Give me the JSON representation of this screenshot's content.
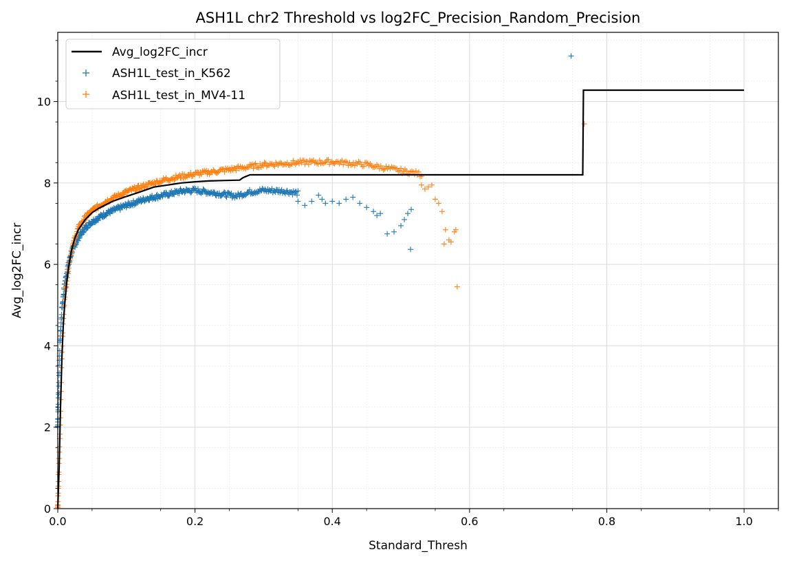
{
  "chart_data": {
    "type": "scatter",
    "title": "ASH1L chr2 Threshold vs log2FC_Precision_Random_Precision",
    "xlabel": "Standard_Thresh",
    "ylabel": "Avg_log2FC_incr",
    "xlim": [
      0.0,
      1.05
    ],
    "ylim": [
      0,
      11.7
    ],
    "xticks": [
      "0.0",
      "0.2",
      "0.4",
      "0.6",
      "0.8",
      "1.0"
    ],
    "yticks": [
      "0",
      "2",
      "4",
      "6",
      "8",
      "10"
    ],
    "grid": true,
    "minor_grid": true,
    "legend_position": "top-left",
    "line_series": {
      "name": "Avg_log2FC_incr",
      "color": "#000000",
      "points": [
        [
          0.0,
          0.0
        ],
        [
          0.002,
          1.0
        ],
        [
          0.004,
          2.5
        ],
        [
          0.006,
          3.7
        ],
        [
          0.008,
          4.5
        ],
        [
          0.01,
          5.0
        ],
        [
          0.013,
          5.55
        ],
        [
          0.016,
          5.95
        ],
        [
          0.02,
          6.35
        ],
        [
          0.025,
          6.65
        ],
        [
          0.03,
          6.85
        ],
        [
          0.04,
          7.1
        ],
        [
          0.05,
          7.27
        ],
        [
          0.06,
          7.38
        ],
        [
          0.08,
          7.55
        ],
        [
          0.1,
          7.67
        ],
        [
          0.12,
          7.78
        ],
        [
          0.14,
          7.9
        ],
        [
          0.16,
          7.95
        ],
        [
          0.18,
          8.0
        ],
        [
          0.2,
          8.03
        ],
        [
          0.22,
          8.05
        ],
        [
          0.24,
          8.06
        ],
        [
          0.265,
          8.07
        ],
        [
          0.27,
          8.13
        ],
        [
          0.28,
          8.2
        ],
        [
          0.5,
          8.2
        ],
        [
          0.65,
          8.2
        ],
        [
          0.765,
          8.2
        ],
        [
          0.766,
          10.28
        ],
        [
          1.0,
          10.28
        ]
      ]
    },
    "scatter_series": [
      {
        "name": "ASH1L_test_in_K562",
        "color": "#1f77b4",
        "marker": "+",
        "curve": [
          [
            0.0,
            2.0
          ],
          [
            0.003,
            4.0
          ],
          [
            0.006,
            4.9
          ],
          [
            0.01,
            5.5
          ],
          [
            0.015,
            5.95
          ],
          [
            0.02,
            6.3
          ],
          [
            0.03,
            6.65
          ],
          [
            0.04,
            6.9
          ],
          [
            0.05,
            7.05
          ],
          [
            0.07,
            7.25
          ],
          [
            0.1,
            7.45
          ],
          [
            0.13,
            7.62
          ],
          [
            0.16,
            7.72
          ],
          [
            0.18,
            7.8
          ],
          [
            0.2,
            7.82
          ],
          [
            0.23,
            7.75
          ],
          [
            0.26,
            7.68
          ],
          [
            0.28,
            7.78
          ],
          [
            0.3,
            7.82
          ],
          [
            0.33,
            7.8
          ],
          [
            0.35,
            7.75
          ]
        ],
        "points": [
          [
            0.35,
            7.55
          ],
          [
            0.36,
            7.45
          ],
          [
            0.37,
            7.55
          ],
          [
            0.38,
            7.7
          ],
          [
            0.385,
            7.6
          ],
          [
            0.39,
            7.5
          ],
          [
            0.4,
            7.55
          ],
          [
            0.41,
            7.5
          ],
          [
            0.42,
            7.6
          ],
          [
            0.43,
            7.65
          ],
          [
            0.44,
            7.5
          ],
          [
            0.45,
            7.4
          ],
          [
            0.46,
            7.3
          ],
          [
            0.465,
            7.2
          ],
          [
            0.47,
            7.25
          ],
          [
            0.48,
            6.75
          ],
          [
            0.49,
            6.8
          ],
          [
            0.5,
            6.95
          ],
          [
            0.505,
            7.1
          ],
          [
            0.51,
            7.25
          ],
          [
            0.515,
            7.35
          ],
          [
            0.514,
            6.37
          ],
          [
            0.748,
            11.12
          ]
        ]
      },
      {
        "name": "ASH1L_test_in_MV4-11",
        "color": "#ff7f0e",
        "marker": "+",
        "curve": [
          [
            0.0,
            0.0
          ],
          [
            0.002,
            1.2
          ],
          [
            0.004,
            2.4
          ],
          [
            0.006,
            3.8
          ],
          [
            0.008,
            4.6
          ],
          [
            0.01,
            5.2
          ],
          [
            0.015,
            5.85
          ],
          [
            0.02,
            6.35
          ],
          [
            0.025,
            6.65
          ],
          [
            0.03,
            6.9
          ],
          [
            0.04,
            7.15
          ],
          [
            0.05,
            7.32
          ],
          [
            0.07,
            7.55
          ],
          [
            0.1,
            7.78
          ],
          [
            0.13,
            7.95
          ],
          [
            0.16,
            8.1
          ],
          [
            0.2,
            8.22
          ],
          [
            0.25,
            8.33
          ],
          [
            0.3,
            8.45
          ],
          [
            0.35,
            8.5
          ],
          [
            0.4,
            8.52
          ],
          [
            0.45,
            8.45
          ],
          [
            0.5,
            8.3
          ],
          [
            0.52,
            8.25
          ],
          [
            0.53,
            8.2
          ]
        ],
        "points": [
          [
            0.53,
            7.95
          ],
          [
            0.535,
            7.85
          ],
          [
            0.54,
            7.9
          ],
          [
            0.545,
            7.95
          ],
          [
            0.55,
            7.6
          ],
          [
            0.555,
            7.5
          ],
          [
            0.56,
            7.3
          ],
          [
            0.565,
            6.85
          ],
          [
            0.563,
            6.5
          ],
          [
            0.57,
            6.6
          ],
          [
            0.573,
            6.55
          ],
          [
            0.578,
            6.8
          ],
          [
            0.58,
            6.85
          ],
          [
            0.582,
            5.45
          ],
          [
            0.767,
            9.45
          ]
        ]
      }
    ]
  }
}
